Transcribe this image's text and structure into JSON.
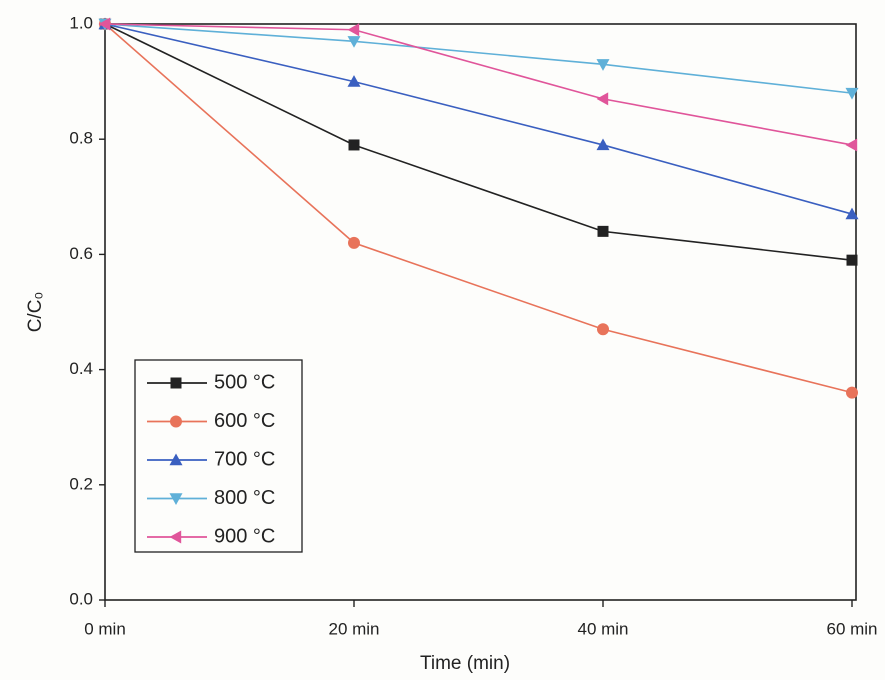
{
  "chart_data": {
    "type": "line",
    "x_label": "Time (min)",
    "y_label": "C/C₀",
    "x": [
      0,
      20,
      40,
      60
    ],
    "xlim": [
      0,
      60
    ],
    "xticks": [
      {
        "value": 0,
        "label": "0 min"
      },
      {
        "value": 20,
        "label": "20 min"
      },
      {
        "value": 40,
        "label": "40 min"
      },
      {
        "value": 60,
        "label": "60 min"
      }
    ],
    "ylim": [
      0,
      1
    ],
    "yticks": [
      {
        "value": 0,
        "label": "0.0"
      },
      0.2,
      0.4,
      0.6,
      0.8,
      {
        "value": 1,
        "label": "1.0"
      }
    ],
    "legend": "lower left",
    "series": [
      {
        "name": "500 °C",
        "color": "#222222",
        "marker": "square",
        "values": [
          1.0,
          0.79,
          0.64,
          0.59
        ]
      },
      {
        "name": "600 °C",
        "color": "#e8735a",
        "marker": "circle",
        "values": [
          1.0,
          0.62,
          0.47,
          0.36
        ]
      },
      {
        "name": "700 °C",
        "color": "#3a5fc0",
        "marker": "triangle-up",
        "values": [
          1.0,
          0.9,
          0.79,
          0.67
        ]
      },
      {
        "name": "800 °C",
        "color": "#5fb0d8",
        "marker": "triangle-down",
        "values": [
          1.0,
          0.97,
          0.93,
          0.88
        ]
      },
      {
        "name": "900 °C",
        "color": "#e0559a",
        "marker": "triangle-left",
        "values": [
          1.0,
          0.99,
          0.87,
          0.79
        ]
      }
    ]
  }
}
